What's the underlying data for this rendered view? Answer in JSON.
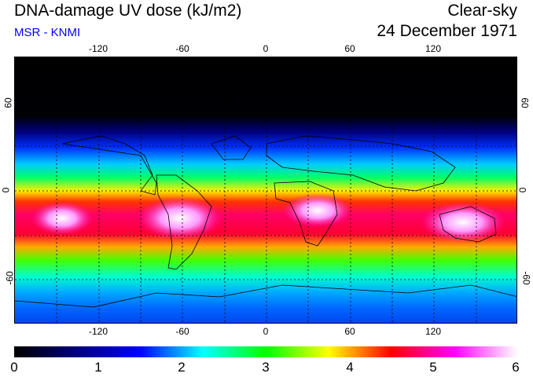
{
  "header": {
    "title": "DNA-damage UV dose (kJ/m2)",
    "subtitle": "MSR - KNMI",
    "condition": "Clear-sky",
    "date": "24 December 1971"
  },
  "map": {
    "lon_ticks": [
      "-120",
      "-60",
      "0",
      "60",
      "120"
    ],
    "lat_ticks": [
      "60",
      "0",
      "-60"
    ],
    "lon_range": [
      -180,
      180
    ],
    "lat_range": [
      -90,
      90
    ]
  },
  "colorbar": {
    "labels": [
      "0",
      "1",
      "2",
      "3",
      "4",
      "5",
      "6"
    ],
    "colors": [
      "#000000",
      "#00007f",
      "#0000ff",
      "#00ffff",
      "#00ff00",
      "#ffff00",
      "#ff0000",
      "#ff00ff",
      "#ffffff"
    ]
  }
}
